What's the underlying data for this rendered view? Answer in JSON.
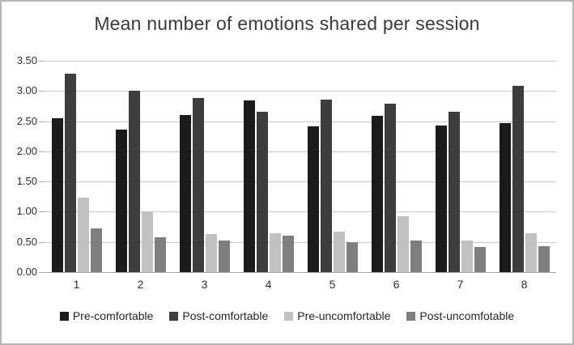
{
  "chart_data": {
    "type": "bar",
    "title": "Mean number of emotions shared per session",
    "categories": [
      "1",
      "2",
      "3",
      "4",
      "5",
      "6",
      "7",
      "8"
    ],
    "series": [
      {
        "name": "Pre-comfortable",
        "color": "#1b1b1b",
        "values": [
          2.55,
          2.36,
          2.6,
          2.84,
          2.42,
          2.59,
          2.43,
          2.47
        ]
      },
      {
        "name": "Post-comfortable",
        "color": "#3d3d3d",
        "values": [
          3.28,
          3.0,
          2.88,
          2.65,
          2.86,
          2.79,
          2.66,
          3.08
        ]
      },
      {
        "name": "Pre-uncomfortable",
        "color": "#c1c1c1",
        "values": [
          1.24,
          1.0,
          0.63,
          0.64,
          0.67,
          0.92,
          0.52,
          0.64
        ]
      },
      {
        "name": "Post-uncomfotable",
        "color": "#7f7f7f",
        "values": [
          0.72,
          0.58,
          0.52,
          0.61,
          0.5,
          0.52,
          0.42,
          0.43
        ]
      }
    ],
    "ylim": [
      0,
      3.5
    ],
    "ytick_step": 0.5,
    "ytick_labels": [
      "0.00",
      "0.50",
      "1.00",
      "1.50",
      "2.00",
      "2.50",
      "3.00",
      "3.50"
    ],
    "grid": true,
    "legend_position": "bottom",
    "colors": {
      "title_text": "#3a3a3a",
      "axis_text": "#2e2e2e",
      "gridline": "#c9c9c9",
      "axis_line": "#a6a6a6",
      "frame_border": "#b6b6b6",
      "background": "#ffffff"
    }
  }
}
